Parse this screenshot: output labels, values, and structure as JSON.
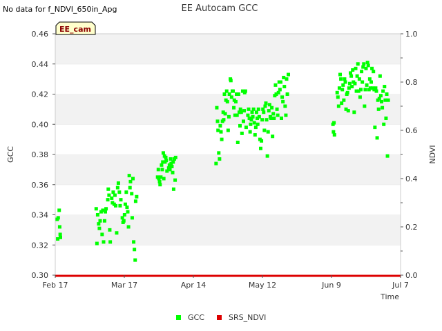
{
  "chart_data": {
    "type": "scatter",
    "title": "EE Autocam GCC",
    "note": "No data for f_NDVI_650in_Apg",
    "site_label": "EE_cam",
    "xlabel": "Time",
    "ylabel": "GCC",
    "y2label": "NDVI",
    "x_ticks": [
      {
        "label": "Feb 17",
        "day": 0
      },
      {
        "label": "Mar 17",
        "day": 28
      },
      {
        "label": "Apr 14",
        "day": 56
      },
      {
        "label": "May 12",
        "day": 84
      },
      {
        "label": "Jun 9",
        "day": 112
      },
      {
        "label": "Jul 7",
        "day": 140
      }
    ],
    "xlim": [
      0,
      140
    ],
    "ylim": [
      0.3,
      0.46
    ],
    "y_ticks": [
      "0.30",
      "0.32",
      "0.34",
      "0.36",
      "0.38",
      "0.40",
      "0.42",
      "0.44",
      "0.46"
    ],
    "y2lim": [
      0.0,
      1.0
    ],
    "y2_ticks": [
      "0.0",
      "0.2",
      "0.4",
      "0.6",
      "0.8",
      "1.0"
    ],
    "legend": [
      {
        "name": "GCC",
        "color": "#00ff00"
      },
      {
        "name": "SRS_NDVI",
        "color": "#dd0000"
      }
    ],
    "series": [
      {
        "name": "GCC",
        "color": "#00ff00",
        "marker": "square",
        "points": [
          [
            0.8,
            0.337
          ],
          [
            1.0,
            0.324
          ],
          [
            1.2,
            0.338
          ],
          [
            1.6,
            0.343
          ],
          [
            1.8,
            0.332
          ],
          [
            2.0,
            0.327
          ],
          [
            2.1,
            0.325
          ],
          [
            16.6,
            0.344
          ],
          [
            16.9,
            0.321
          ],
          [
            17.2,
            0.34
          ],
          [
            17.6,
            0.334
          ],
          [
            17.9,
            0.331
          ],
          [
            18.2,
            0.336
          ],
          [
            18.6,
            0.342
          ],
          [
            19.0,
            0.327
          ],
          [
            19.3,
            0.343
          ],
          [
            19.6,
            0.322
          ],
          [
            20.0,
            0.336
          ],
          [
            20.3,
            0.342
          ],
          [
            20.6,
            0.344
          ],
          [
            21.3,
            0.35
          ],
          [
            21.5,
            0.357
          ],
          [
            21.8,
            0.353
          ],
          [
            22.1,
            0.33
          ],
          [
            22.3,
            0.322
          ],
          [
            22.9,
            0.351
          ],
          [
            23.2,
            0.348
          ],
          [
            23.5,
            0.355
          ],
          [
            23.9,
            0.347
          ],
          [
            24.2,
            0.353
          ],
          [
            24.5,
            0.346
          ],
          [
            24.9,
            0.328
          ],
          [
            25.3,
            0.358
          ],
          [
            25.6,
            0.361
          ],
          [
            26.0,
            0.355
          ],
          [
            26.3,
            0.346
          ],
          [
            26.6,
            0.35
          ],
          [
            27.2,
            0.338
          ],
          [
            27.5,
            0.335
          ],
          [
            27.8,
            0.336
          ],
          [
            28.1,
            0.34
          ],
          [
            28.4,
            0.347
          ],
          [
            28.8,
            0.355
          ],
          [
            29.1,
            0.345
          ],
          [
            29.4,
            0.342
          ],
          [
            29.7,
            0.332
          ],
          [
            30.0,
            0.366
          ],
          [
            30.3,
            0.358
          ],
          [
            30.5,
            0.362
          ],
          [
            31.0,
            0.354
          ],
          [
            31.2,
            0.338
          ],
          [
            31.5,
            0.364
          ],
          [
            31.8,
            0.322
          ],
          [
            32.1,
            0.317
          ],
          [
            32.4,
            0.31
          ],
          [
            32.6,
            0.349
          ],
          [
            33.0,
            0.352
          ],
          [
            41.5,
            0.365
          ],
          [
            41.8,
            0.37
          ],
          [
            42.0,
            0.364
          ],
          [
            42.3,
            0.362
          ],
          [
            42.5,
            0.36
          ],
          [
            42.8,
            0.365
          ],
          [
            43.1,
            0.373
          ],
          [
            43.4,
            0.37
          ],
          [
            43.6,
            0.375
          ],
          [
            43.8,
            0.381
          ],
          [
            44.0,
            0.364
          ],
          [
            44.3,
            0.379
          ],
          [
            44.5,
            0.375
          ],
          [
            44.8,
            0.378
          ],
          [
            45.0,
            0.376
          ],
          [
            45.3,
            0.369
          ],
          [
            46.0,
            0.371
          ],
          [
            46.3,
            0.373
          ],
          [
            46.5,
            0.37
          ],
          [
            46.8,
            0.377
          ],
          [
            47.0,
            0.374
          ],
          [
            47.3,
            0.372
          ],
          [
            47.6,
            0.368
          ],
          [
            47.8,
            0.375
          ],
          [
            48.0,
            0.357
          ],
          [
            48.3,
            0.377
          ],
          [
            48.6,
            0.363
          ],
          [
            48.8,
            0.378
          ],
          [
            65.2,
            0.374
          ],
          [
            65.5,
            0.411
          ],
          [
            65.8,
            0.402
          ],
          [
            66.0,
            0.396
          ],
          [
            66.3,
            0.381
          ],
          [
            66.6,
            0.377
          ],
          [
            66.9,
            0.399
          ],
          [
            67.2,
            0.395
          ],
          [
            67.5,
            0.39
          ],
          [
            67.8,
            0.402
          ],
          [
            68.1,
            0.408
          ],
          [
            68.3,
            0.403
          ],
          [
            68.6,
            0.42
          ],
          [
            68.9,
            0.407
          ],
          [
            69.2,
            0.416
          ],
          [
            69.5,
            0.422
          ],
          [
            69.8,
            0.415
          ],
          [
            70.1,
            0.396
          ],
          [
            70.4,
            0.405
          ],
          [
            70.6,
            0.42
          ],
          [
            71.0,
            0.43
          ],
          [
            71.2,
            0.429
          ],
          [
            71.5,
            0.418
          ],
          [
            71.8,
            0.422
          ],
          [
            72.1,
            0.422
          ],
          [
            72.4,
            0.411
          ],
          [
            72.6,
            0.416
          ],
          [
            72.9,
            0.406
          ],
          [
            73.2,
            0.415
          ],
          [
            73.5,
            0.42
          ],
          [
            73.7,
            0.406
          ],
          [
            74.0,
            0.388
          ],
          [
            74.3,
            0.42
          ],
          [
            74.6,
            0.408
          ],
          [
            74.9,
            0.399
          ],
          [
            75.1,
            0.41
          ],
          [
            75.4,
            0.408
          ],
          [
            75.7,
            0.394
          ],
          [
            76.0,
            0.422
          ],
          [
            76.3,
            0.402
          ],
          [
            76.6,
            0.409
          ],
          [
            76.8,
            0.421
          ],
          [
            77.1,
            0.422
          ],
          [
            77.4,
            0.398
          ],
          [
            78.1,
            0.406
          ],
          [
            78.4,
            0.41
          ],
          [
            78.7,
            0.404
          ],
          [
            79.0,
            0.395
          ],
          [
            79.2,
            0.4
          ],
          [
            79.5,
            0.403
          ],
          [
            79.8,
            0.408
          ],
          [
            80.1,
            0.405
          ],
          [
            80.4,
            0.41
          ],
          [
            80.7,
            0.401
          ],
          [
            81.0,
            0.393
          ],
          [
            81.3,
            0.398
          ],
          [
            81.6,
            0.408
          ],
          [
            81.9,
            0.404
          ],
          [
            82.1,
            0.4
          ],
          [
            82.4,
            0.41
          ],
          [
            82.7,
            0.405
          ],
          [
            83.0,
            0.39
          ],
          [
            83.3,
            0.384
          ],
          [
            83.6,
            0.389
          ],
          [
            83.9,
            0.403
          ],
          [
            84.2,
            0.41
          ],
          [
            84.5,
            0.408
          ],
          [
            84.8,
            0.396
          ],
          [
            85.1,
            0.412
          ],
          [
            85.4,
            0.414
          ],
          [
            85.7,
            0.403
          ],
          [
            86.0,
            0.379
          ],
          [
            86.3,
            0.395
          ],
          [
            86.6,
            0.409
          ],
          [
            86.9,
            0.413
          ],
          [
            87.2,
            0.405
          ],
          [
            87.5,
            0.404
          ],
          [
            87.8,
            0.411
          ],
          [
            88.1,
            0.392
          ],
          [
            88.4,
            0.407
          ],
          [
            88.7,
            0.404
          ],
          [
            89.0,
            0.419
          ],
          [
            89.3,
            0.426
          ],
          [
            89.6,
            0.42
          ],
          [
            89.9,
            0.41
          ],
          [
            90.2,
            0.406
          ],
          [
            90.5,
            0.421
          ],
          [
            90.8,
            0.428
          ],
          [
            91.1,
            0.423
          ],
          [
            91.4,
            0.428
          ],
          [
            91.7,
            0.404
          ],
          [
            92.0,
            0.418
          ],
          [
            92.3,
            0.415
          ],
          [
            92.6,
            0.431
          ],
          [
            92.9,
            0.425
          ],
          [
            93.2,
            0.412
          ],
          [
            93.5,
            0.406
          ],
          [
            93.8,
            0.43
          ],
          [
            94.1,
            0.42
          ],
          [
            94.5,
            0.433
          ],
          [
            112.6,
            0.4
          ],
          [
            112.8,
            0.395
          ],
          [
            113.0,
            0.401
          ],
          [
            113.2,
            0.393
          ],
          [
            114.3,
            0.421
          ],
          [
            114.6,
            0.418
          ],
          [
            114.9,
            0.412
          ],
          [
            115.2,
            0.424
          ],
          [
            115.5,
            0.433
          ],
          [
            115.8,
            0.43
          ],
          [
            116.1,
            0.414
          ],
          [
            116.4,
            0.423
          ],
          [
            116.7,
            0.426
          ],
          [
            117.0,
            0.416
          ],
          [
            117.3,
            0.43
          ],
          [
            117.6,
            0.428
          ],
          [
            117.9,
            0.41
          ],
          [
            118.2,
            0.42
          ],
          [
            118.5,
            0.421
          ],
          [
            118.8,
            0.409
          ],
          [
            119.1,
            0.424
          ],
          [
            119.4,
            0.427
          ],
          [
            119.7,
            0.434
          ],
          [
            120.0,
            0.432
          ],
          [
            120.3,
            0.425
          ],
          [
            120.6,
            0.436
          ],
          [
            120.9,
            0.428
          ],
          [
            121.2,
            0.408
          ],
          [
            121.5,
            0.427
          ],
          [
            121.8,
            0.437
          ],
          [
            122.1,
            0.422
          ],
          [
            122.4,
            0.432
          ],
          [
            122.7,
            0.44
          ],
          [
            123.0,
            0.422
          ],
          [
            123.3,
            0.43
          ],
          [
            123.6,
            0.418
          ],
          [
            123.9,
            0.423
          ],
          [
            124.2,
            0.435
          ],
          [
            124.5,
            0.428
          ],
          [
            124.8,
            0.438
          ],
          [
            125.1,
            0.44
          ],
          [
            125.4,
            0.412
          ],
          [
            125.7,
            0.423
          ],
          [
            126.0,
            0.437
          ],
          [
            126.3,
            0.426
          ],
          [
            126.6,
            0.441
          ],
          [
            126.9,
            0.439
          ],
          [
            127.2,
            0.423
          ],
          [
            127.5,
            0.43
          ],
          [
            127.8,
            0.424
          ],
          [
            128.1,
            0.428
          ],
          [
            128.4,
            0.437
          ],
          [
            128.7,
            0.424
          ],
          [
            129.0,
            0.435
          ],
          [
            129.3,
            0.423
          ],
          [
            129.6,
            0.398
          ],
          [
            129.9,
            0.424
          ],
          [
            130.2,
            0.422
          ],
          [
            130.5,
            0.391
          ],
          [
            130.8,
            0.416
          ],
          [
            131.1,
            0.41
          ],
          [
            131.4,
            0.417
          ],
          [
            131.7,
            0.432
          ],
          [
            132.0,
            0.419
          ],
          [
            132.3,
            0.415
          ],
          [
            132.6,
            0.411
          ],
          [
            132.9,
            0.422
          ],
          [
            133.2,
            0.4
          ],
          [
            133.5,
            0.425
          ],
          [
            133.8,
            0.416
          ],
          [
            134.1,
            0.404
          ],
          [
            134.4,
            0.42
          ],
          [
            134.7,
            0.379
          ],
          [
            135.0,
            0.416
          ]
        ]
      },
      {
        "name": "SRS_NDVI",
        "color": "#dd0000",
        "marker": "line",
        "axis": "y2",
        "points": [
          [
            0,
            0.0
          ],
          [
            140,
            0.0
          ]
        ]
      }
    ]
  }
}
